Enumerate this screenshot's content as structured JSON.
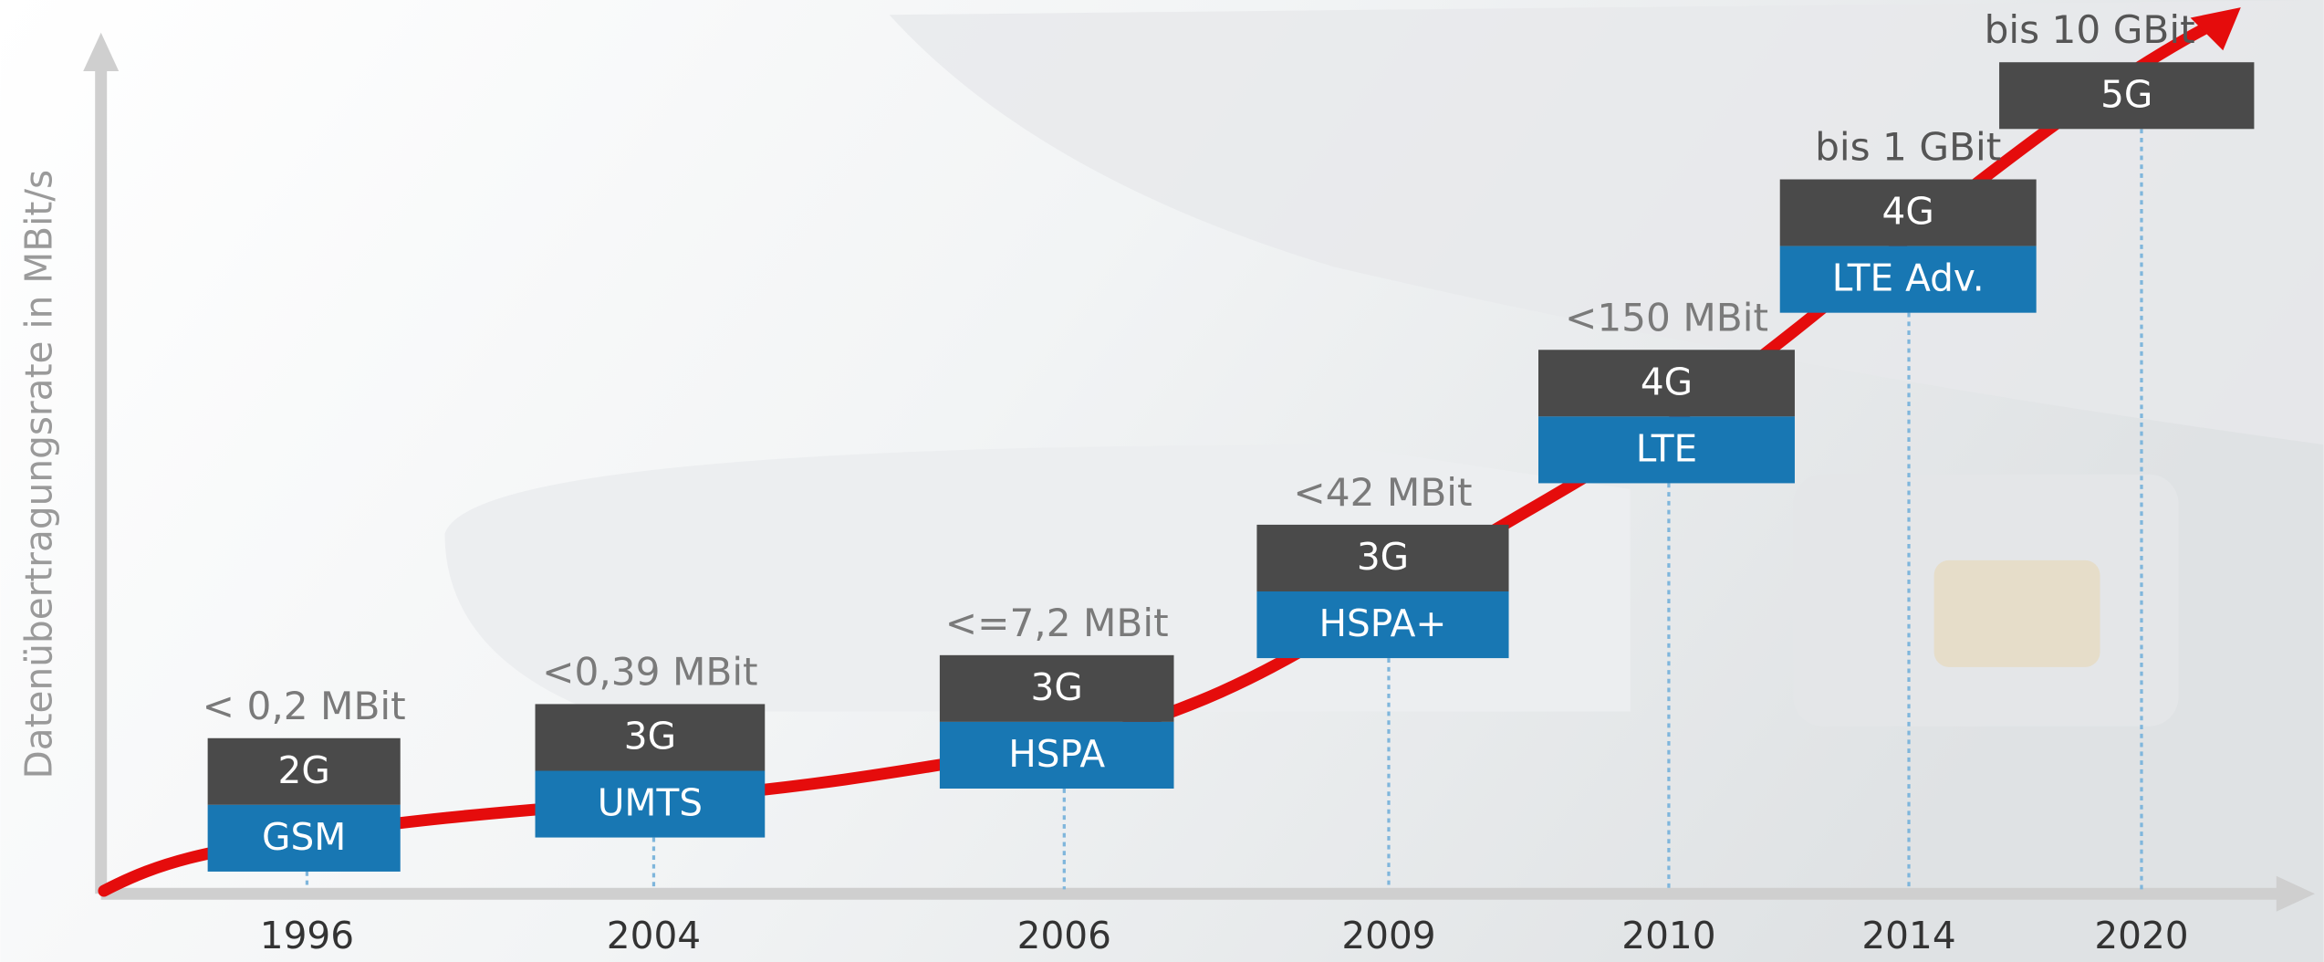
{
  "y_axis_label": "Datenübertragungsrate in MBit/s",
  "steps": [
    {
      "year": "1996",
      "speed": "< 0,2 MBit",
      "generation": "2G",
      "technology": "GSM"
    },
    {
      "year": "2004",
      "speed": "<0,39 MBit",
      "generation": "3G",
      "technology": "UMTS"
    },
    {
      "year": "2006",
      "speed": "<=7,2 MBit",
      "generation": "3G",
      "technology": "HSPA"
    },
    {
      "year": "2009",
      "speed": "<42 MBit",
      "generation": "3G",
      "technology": "HSPA+"
    },
    {
      "year": "2010",
      "speed": "<150 MBit",
      "generation": "4G",
      "technology": "LTE"
    },
    {
      "year": "2014",
      "speed": "bis 1 GBit",
      "generation": "4G",
      "technology": "LTE Adv."
    },
    {
      "year": "2020",
      "speed": "bis 10 GBit",
      "generation": "5G"
    }
  ]
}
